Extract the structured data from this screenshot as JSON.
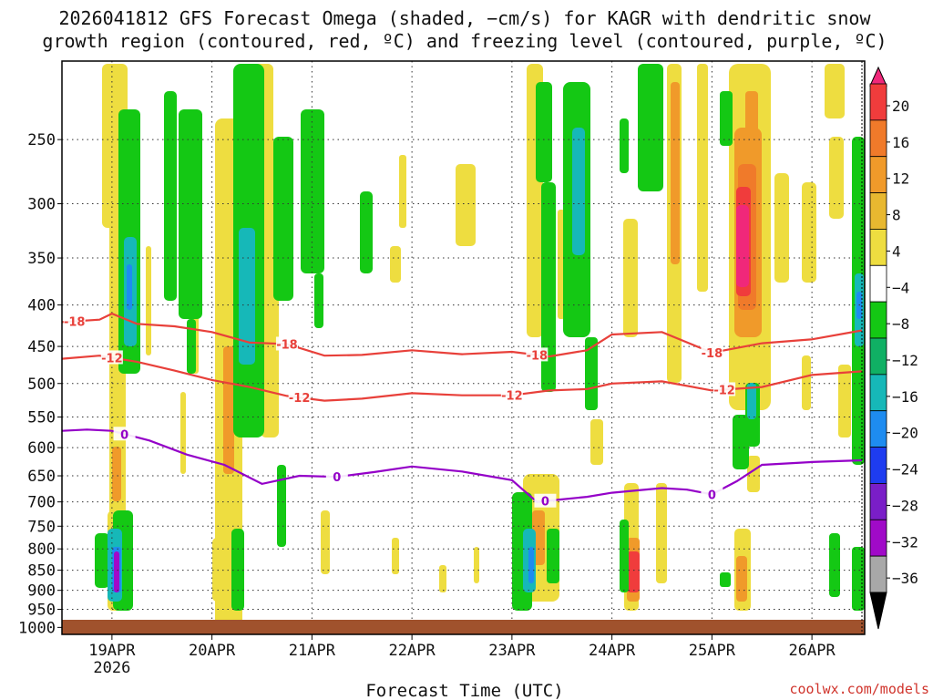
{
  "title_line1": "2026041812 GFS Forecast Omega (shaded, −cm/s) for KAGR with dendritic snow",
  "title_line2": "growth region (contoured, red, ºC) and freezing level (contoured, purple, ºC)",
  "credit": "coolwx.com/models",
  "chart_data": {
    "type": "heatmap",
    "title": "2026041812 GFS Forecast Omega (shaded, −cm/s) for KAGR with dendritic snow growth region (contoured, red, ºC) and freezing level (contoured, purple, ºC)",
    "xlabel": "Forecast Time (UTC)",
    "ylabel": "",
    "x_range_hours": [
      -12,
      180
    ],
    "x_ticks": [
      {
        "label": "19APR",
        "sub": "2026",
        "hour": 0
      },
      {
        "label": "20APR",
        "sub": "",
        "hour": 24
      },
      {
        "label": "21APR",
        "sub": "",
        "hour": 48
      },
      {
        "label": "22APR",
        "sub": "",
        "hour": 72
      },
      {
        "label": "23APR",
        "sub": "",
        "hour": 96
      },
      {
        "label": "24APR",
        "sub": "",
        "hour": 120
      },
      {
        "label": "25APR",
        "sub": "",
        "hour": 144
      },
      {
        "label": "26APR",
        "sub": "",
        "hour": 168
      }
    ],
    "y_ticks_hpa": [
      250,
      300,
      350,
      400,
      450,
      500,
      550,
      600,
      650,
      700,
      750,
      800,
      850,
      900,
      950,
      1000
    ],
    "y_range_hpa": [
      200,
      1020
    ],
    "y_scale": "log-pressure",
    "grid": "dotted",
    "colorbar": {
      "labels": [
        "20",
        "16",
        "12",
        "8",
        "4",
        "−4",
        "−8",
        "−12",
        "−16",
        "−20",
        "−24",
        "−28",
        "−32",
        "−36"
      ],
      "colors": [
        "#f0287a",
        "#f03c3c",
        "#f07a2a",
        "#f09a2a",
        "#e8b830",
        "#eedd40",
        "#ffffff",
        "#14c814",
        "#10b064",
        "#16b8b8",
        "#1e8cf0",
        "#1e3cf0",
        "#7a1ec8",
        "#a00ac8",
        "#a8a8a8"
      ]
    },
    "contours": [
      {
        "name": "-18",
        "color": "#e8403a",
        "label_hours": [
          -9,
          42,
          102,
          144
        ],
        "points": [
          [
            -12,
            420
          ],
          [
            -3,
            417
          ],
          [
            0,
            410
          ],
          [
            6,
            422
          ],
          [
            15,
            425
          ],
          [
            24,
            432
          ],
          [
            33,
            445
          ],
          [
            42,
            447
          ],
          [
            51,
            462
          ],
          [
            60,
            461
          ],
          [
            72,
            455
          ],
          [
            84,
            460
          ],
          [
            96,
            457
          ],
          [
            105,
            463
          ],
          [
            114,
            455
          ],
          [
            120,
            435
          ],
          [
            132,
            432
          ],
          [
            144,
            458
          ],
          [
            156,
            446
          ],
          [
            168,
            441
          ],
          [
            180,
            430
          ]
        ]
      },
      {
        "name": "-12",
        "color": "#e8403a",
        "label_hours": [
          0,
          45,
          96,
          147
        ],
        "points": [
          [
            -12,
            466
          ],
          [
            -3,
            462
          ],
          [
            6,
            470
          ],
          [
            15,
            482
          ],
          [
            24,
            495
          ],
          [
            33,
            505
          ],
          [
            42,
            518
          ],
          [
            51,
            525
          ],
          [
            60,
            522
          ],
          [
            72,
            514
          ],
          [
            84,
            517
          ],
          [
            96,
            517
          ],
          [
            105,
            510
          ],
          [
            114,
            508
          ],
          [
            120,
            500
          ],
          [
            132,
            497
          ],
          [
            144,
            510
          ],
          [
            156,
            505
          ],
          [
            168,
            488
          ],
          [
            180,
            483
          ]
        ]
      },
      {
        "name": "0",
        "color": "#9400c8",
        "label_hours": [
          3,
          54,
          104,
          144
        ],
        "points": [
          [
            -12,
            572
          ],
          [
            -6,
            570
          ],
          [
            0,
            572
          ],
          [
            9,
            588
          ],
          [
            18,
            612
          ],
          [
            27,
            630
          ],
          [
            36,
            665
          ],
          [
            45,
            650
          ],
          [
            54,
            652
          ],
          [
            63,
            643
          ],
          [
            72,
            633
          ],
          [
            84,
            642
          ],
          [
            96,
            658
          ],
          [
            102,
            700
          ],
          [
            108,
            695
          ],
          [
            114,
            690
          ],
          [
            120,
            682
          ],
          [
            132,
            673
          ],
          [
            138,
            676
          ],
          [
            144,
            685
          ],
          [
            150,
            660
          ],
          [
            156,
            630
          ],
          [
            168,
            625
          ],
          [
            180,
            622
          ]
        ]
      }
    ]
  }
}
